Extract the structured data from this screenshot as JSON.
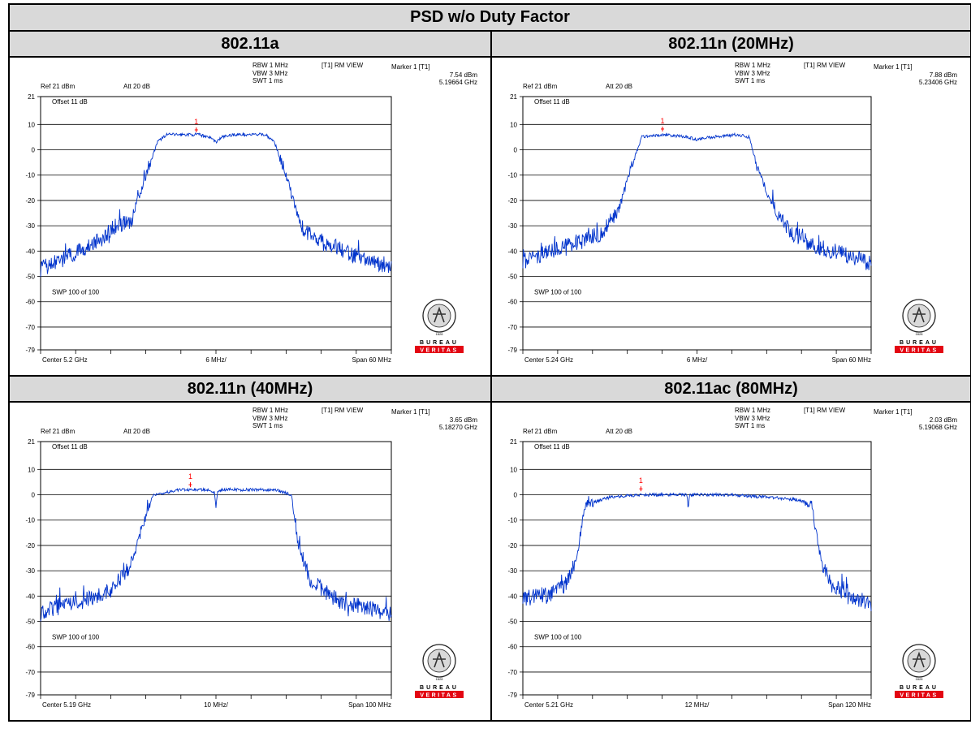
{
  "page": {
    "title": "PSD w/o Duty Factor"
  },
  "instrument_settings": {
    "ref": "Ref 21 dBm",
    "att": "Att 20 dB",
    "offset": "Offset 11 dB",
    "rbw": "RBW 1 MHz",
    "vbw": "VBW 3 MHz",
    "swt": "SWT 1 ms",
    "view": "[T1] RM VIEW",
    "marker_header": "Marker 1 [T1]",
    "sweep": "SWP 100 of 100",
    "marker_label": "1"
  },
  "logo": {
    "text_top": "BUREAU",
    "text_bottom": "VERITAS",
    "year": "1828",
    "red": "#e30613"
  },
  "colors": {
    "trace": "#0033cc",
    "marker": "#ff0000",
    "grid": "#000000"
  },
  "panels": [
    {
      "title": "802.11a",
      "center": "Center 5.2 GHz",
      "div": "6 MHz/",
      "span_label": "Span 60 MHz",
      "marker_level": "7.54 dBm",
      "marker_freq": "5.19664 GHz"
    },
    {
      "title": "802.11n (20MHz)",
      "center": "Center 5.24 GHz",
      "div": "6 MHz/",
      "span_label": "Span 60 MHz",
      "marker_level": "7.88 dBm",
      "marker_freq": "5.23406 GHz"
    },
    {
      "title": "802.11n (40MHz)",
      "center": "Center 5.19 GHz",
      "div": "10 MHz/",
      "span_label": "Span 100 MHz",
      "marker_level": "3.65 dBm",
      "marker_freq": "5.18270 GHz"
    },
    {
      "title": "802.11ac (80MHz)",
      "center": "Center 5.21 GHz",
      "div": "12 MHz/",
      "span_label": "Span 120 MHz",
      "marker_level": "2.03 dBm",
      "marker_freq": "5.19068 GHz"
    }
  ],
  "chart_data": [
    {
      "type": "line",
      "title": "802.11a",
      "xlabel": "",
      "ylabel": "",
      "x_unit": "GHz",
      "xlim": [
        5.17,
        5.23
      ],
      "ylim": [
        -79,
        21
      ],
      "yticks": [
        21,
        10,
        0,
        -10,
        -20,
        -30,
        -40,
        -50,
        -60,
        -70,
        -79
      ],
      "marker": {
        "x": 5.19664,
        "y": 7.54
      },
      "series": [
        {
          "x": [
            5.17,
            5.175,
            5.18,
            5.183,
            5.1855,
            5.188,
            5.19,
            5.1915,
            5.193,
            5.197,
            5.199,
            5.2,
            5.201,
            5.203,
            5.207,
            5.2085,
            5.21,
            5.212,
            5.2145,
            5.217,
            5.22,
            5.225,
            5.23
          ],
          "y": [
            -47,
            -42,
            -36,
            -30,
            -28,
            -10,
            3,
            6,
            6,
            6,
            5,
            3,
            5,
            6,
            6,
            6,
            3,
            -10,
            -30,
            -36,
            -38,
            -43,
            -47
          ]
        }
      ]
    },
    {
      "type": "line",
      "title": "802.11n (20MHz)",
      "xlabel": "",
      "ylabel": "",
      "x_unit": "GHz",
      "xlim": [
        5.21,
        5.27
      ],
      "ylim": [
        -79,
        21
      ],
      "yticks": [
        21,
        10,
        0,
        -10,
        -20,
        -30,
        -40,
        -50,
        -60,
        -70,
        -79
      ],
      "marker": {
        "x": 5.23406,
        "y": 7.88
      },
      "series": [
        {
          "x": [
            5.21,
            5.215,
            5.22,
            5.2235,
            5.2265,
            5.2285,
            5.2305,
            5.234,
            5.2385,
            5.24,
            5.2425,
            5.247,
            5.249,
            5.2505,
            5.2535,
            5.2565,
            5.26,
            5.265,
            5.27
          ],
          "y": [
            -44,
            -40,
            -36,
            -33,
            -24,
            -8,
            5,
            6,
            5,
            4,
            5,
            6,
            5,
            -8,
            -24,
            -33,
            -38,
            -41,
            -45
          ]
        }
      ]
    },
    {
      "type": "line",
      "title": "802.11n (40MHz)",
      "xlabel": "",
      "ylabel": "",
      "x_unit": "GHz",
      "xlim": [
        5.14,
        5.24
      ],
      "ylim": [
        -79,
        21
      ],
      "yticks": [
        21,
        10,
        0,
        -10,
        -20,
        -30,
        -40,
        -50,
        -60,
        -70,
        -79
      ],
      "marker": {
        "x": 5.1827,
        "y": 3.65
      },
      "series": [
        {
          "x": [
            5.14,
            5.15,
            5.16,
            5.1655,
            5.1675,
            5.172,
            5.18,
            5.188,
            5.1895,
            5.19,
            5.1905,
            5.192,
            5.2,
            5.207,
            5.2115,
            5.2135,
            5.217,
            5.225,
            5.24
          ],
          "y": [
            -46,
            -43,
            -38,
            -28,
            -20,
            0,
            2,
            2,
            1,
            -4,
            1,
            2,
            2,
            2,
            0,
            -20,
            -34,
            -42,
            -47
          ]
        }
      ]
    },
    {
      "type": "line",
      "title": "802.11ac (80MHz)",
      "xlabel": "",
      "ylabel": "",
      "x_unit": "GHz",
      "xlim": [
        5.15,
        5.27
      ],
      "ylim": [
        -79,
        21
      ],
      "yticks": [
        21,
        10,
        0,
        -10,
        -20,
        -30,
        -40,
        -50,
        -60,
        -70,
        -79
      ],
      "marker": {
        "x": 5.19068,
        "y": 2.03
      },
      "series": [
        {
          "x": [
            5.15,
            5.16,
            5.165,
            5.1685,
            5.1715,
            5.18,
            5.19,
            5.2,
            5.2065,
            5.207,
            5.2075,
            5.22,
            5.235,
            5.245,
            5.2495,
            5.2525,
            5.256,
            5.262,
            5.27
          ],
          "y": [
            -41,
            -39,
            -35,
            -25,
            -4,
            -1,
            0,
            0,
            0,
            -4,
            0,
            0,
            -1,
            -2,
            -4,
            -25,
            -35,
            -40,
            -43
          ]
        }
      ]
    }
  ]
}
